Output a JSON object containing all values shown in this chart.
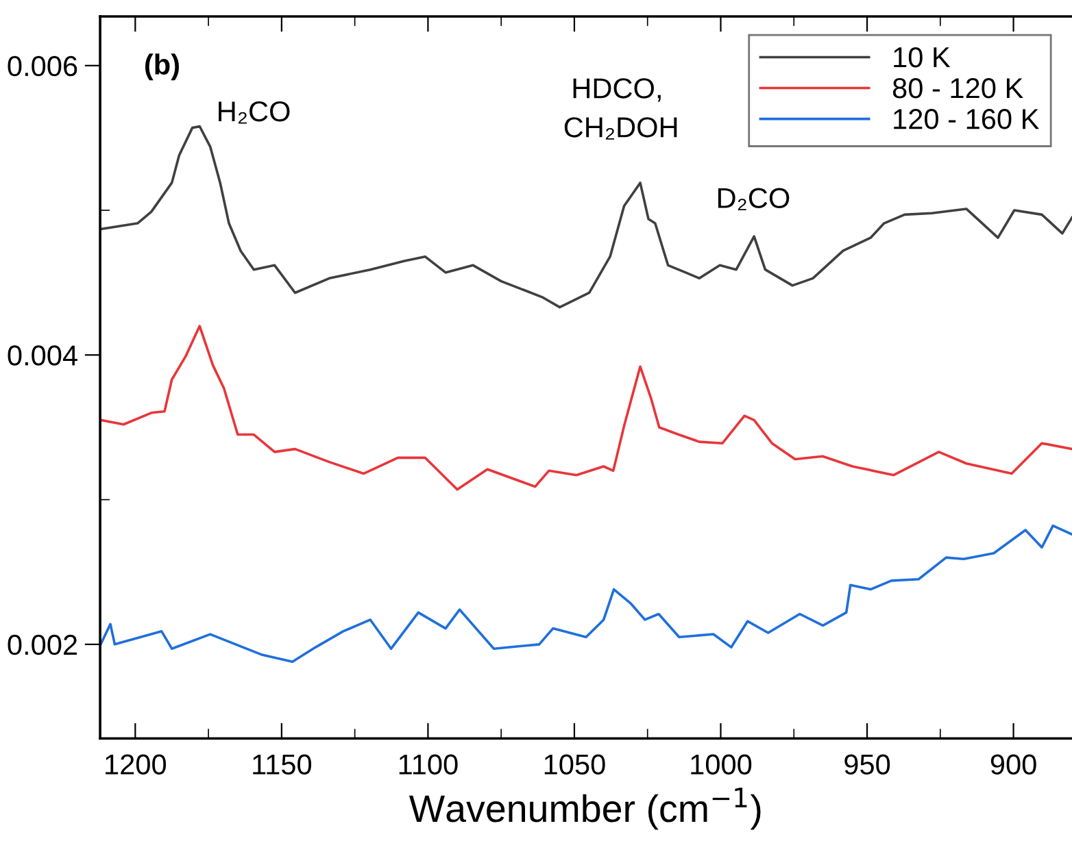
{
  "chart_data": {
    "type": "line",
    "xlabel": "Wavenumber (cm$^{−1}$)",
    "xlim": [
      1212,
      880
    ],
    "ylim": [
      0.00135,
      0.00634
    ],
    "xticks": [
      1200,
      {
        "value": 1175,
        "label": null
      },
      1150,
      {
        "value": 1125,
        "label": null
      },
      1100,
      {
        "value": 1075,
        "label": null
      },
      1050,
      {
        "value": 1025,
        "label": null
      },
      1000,
      {
        "value": 975,
        "label": null
      },
      950,
      {
        "value": 925,
        "label": null
      },
      900
    ],
    "yticks": [
      0.002,
      {
        "value": 0.003,
        "label": null
      },
      0.004,
      {
        "value": 0.005,
        "label": null
      },
      0.006
    ],
    "grid": false,
    "legend": "top right",
    "marker": "none",
    "line_style": "solid",
    "annotations": [
      "(b)",
      "H₂CO",
      "HDCO,\n CH₂DOH",
      "D₂CO"
    ],
    "series": [
      {
        "name": "10 K",
        "color": "#404040",
        "x": [
          1211.8,
          1199.2,
          1194.5,
          1187.5,
          1185,
          1180.5,
          1178,
          1174.4,
          1171,
          1168,
          1164,
          1159.5,
          1152.4,
          1145.4,
          1133.7,
          1119.7,
          1108,
          1101,
          1094,
          1084.6,
          1075,
          1061,
          1055,
          1044.9,
          1037.8,
          1033,
          1027.5,
          1024.7,
          1022.4,
          1018,
          1012,
          1007.3,
          1000.3,
          994.7,
          988.6,
          984.8,
          975.5,
          968.5,
          958.2,
          948.8,
          944.2,
          937.2,
          927.8,
          916.1,
          905.3,
          899.7,
          890.3,
          883.3,
          880
        ],
        "values": [
          0.00487,
          0.00491,
          0.00499,
          0.00519,
          0.00538,
          0.00557,
          0.00558,
          0.00544,
          0.00519,
          0.00491,
          0.00472,
          0.00459,
          0.00462,
          0.00443,
          0.00453,
          0.00459,
          0.00465,
          0.00468,
          0.00457,
          0.00462,
          0.00451,
          0.0044,
          0.00433,
          0.00443,
          0.00468,
          0.00503,
          0.00519,
          0.00494,
          0.00491,
          0.00462,
          0.00457,
          0.00453,
          0.00462,
          0.00459,
          0.00482,
          0.00459,
          0.00448,
          0.00453,
          0.00472,
          0.00481,
          0.00491,
          0.00497,
          0.00498,
          0.00501,
          0.00481,
          0.005,
          0.00497,
          0.00484,
          0.00495
        ]
      },
      {
        "name": "80 - 120 K",
        "color": "#e8363a",
        "x": [
          1211.8,
          1204,
          1194.5,
          1190,
          1187.5,
          1182.8,
          1178,
          1173.5,
          1169.7,
          1165,
          1159.5,
          1152.4,
          1145.4,
          1133.7,
          1122,
          1110.3,
          1101,
          1090,
          1079.7,
          1063.4,
          1058.7,
          1049.3,
          1040,
          1036.7,
          1033,
          1027.5,
          1023.8,
          1021,
          1014.4,
          1007.3,
          999.4,
          991.9,
          988.6,
          982.5,
          974.6,
          965.2,
          955,
          940.9,
          925.5,
          916.1,
          900.6,
          890.3,
          880
        ],
        "values": [
          0.00355,
          0.00352,
          0.0036,
          0.00361,
          0.00383,
          0.00399,
          0.0042,
          0.00393,
          0.00377,
          0.00345,
          0.00345,
          0.00333,
          0.00335,
          0.00326,
          0.00318,
          0.00329,
          0.00329,
          0.00307,
          0.00321,
          0.00309,
          0.0032,
          0.00317,
          0.00323,
          0.0032,
          0.00351,
          0.00392,
          0.0037,
          0.0035,
          0.00345,
          0.0034,
          0.00339,
          0.00358,
          0.00355,
          0.00339,
          0.00328,
          0.0033,
          0.00323,
          0.00317,
          0.00333,
          0.00325,
          0.00318,
          0.00339,
          0.00335
        ]
      },
      {
        "name": "120 - 160 K",
        "color": "#1f6fdc",
        "x": [
          1211.8,
          1208.5,
          1207,
          1191,
          1187.5,
          1174.4,
          1157,
          1146.3,
          1138.4,
          1129,
          1119.7,
          1112.6,
          1103.3,
          1094,
          1089.2,
          1077.5,
          1062,
          1057.3,
          1046,
          1040,
          1036.5,
          1030.6,
          1025.9,
          1021.2,
          1014.2,
          1002.5,
          996.4,
          990.8,
          983.8,
          973,
          965.1,
          957.1,
          955.7,
          948.8,
          941.7,
          932.4,
          923,
          917,
          906.7,
          895.9,
          890.3,
          886.5,
          880
        ],
        "values": [
          0.002,
          0.00214,
          0.002,
          0.00209,
          0.00197,
          0.00207,
          0.00193,
          0.00188,
          0.00198,
          0.00209,
          0.00217,
          0.00197,
          0.00222,
          0.00211,
          0.00224,
          0.00197,
          0.002,
          0.00211,
          0.00205,
          0.00217,
          0.00238,
          0.00228,
          0.00217,
          0.00221,
          0.00205,
          0.00207,
          0.00198,
          0.00216,
          0.00208,
          0.00221,
          0.00213,
          0.00222,
          0.00241,
          0.00238,
          0.00244,
          0.00245,
          0.0026,
          0.00259,
          0.00263,
          0.00279,
          0.00267,
          0.00282,
          0.00276
        ]
      }
    ]
  }
}
